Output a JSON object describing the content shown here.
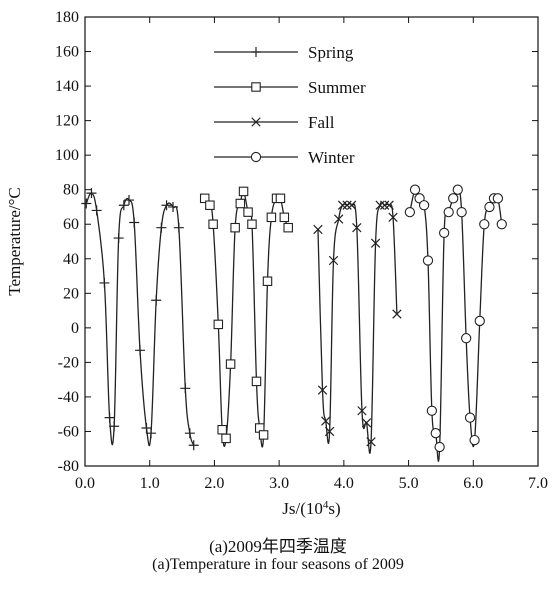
{
  "chart_data": {
    "type": "line",
    "xlabel": "Js/(10",
    "xlabel_sup": "4",
    "xlabel_suffix": "s)",
    "ylabel": "Temperature/°C",
    "xlim": [
      0,
      7.0
    ],
    "ylim": [
      -80,
      180
    ],
    "xticks": [
      "0.0",
      "1.0",
      "2.0",
      "3.0",
      "4.0",
      "5.0",
      "6.0",
      "7.0"
    ],
    "yticks": [
      "-80",
      "-60",
      "-40",
      "-20",
      "0",
      "20",
      "40",
      "60",
      "80",
      "100",
      "120",
      "140",
      "160",
      "180"
    ],
    "legend_position": "top-center",
    "grid": false,
    "series": [
      {
        "name": "Spring",
        "marker": "plus",
        "points": [
          [
            0.02,
            72
          ],
          [
            0.1,
            78
          ],
          [
            0.18,
            68
          ],
          [
            0.3,
            26
          ],
          [
            0.38,
            -52
          ],
          [
            0.45,
            -57
          ],
          [
            0.52,
            52
          ],
          [
            0.6,
            71
          ],
          [
            0.68,
            74
          ],
          [
            0.76,
            61
          ],
          [
            0.85,
            -13
          ],
          [
            0.95,
            -58
          ],
          [
            1.02,
            -61
          ],
          [
            1.1,
            16
          ],
          [
            1.18,
            58
          ],
          [
            1.26,
            71
          ],
          [
            1.36,
            70
          ],
          [
            1.45,
            58
          ],
          [
            1.55,
            -35
          ],
          [
            1.62,
            -61
          ],
          [
            1.68,
            -68
          ]
        ]
      },
      {
        "name": "Summer",
        "marker": "square",
        "points": [
          [
            1.85,
            75
          ],
          [
            1.93,
            71
          ],
          [
            1.98,
            60
          ],
          [
            2.06,
            2
          ],
          [
            2.12,
            -59
          ],
          [
            2.18,
            -64
          ],
          [
            2.25,
            -21
          ],
          [
            2.32,
            58
          ],
          [
            2.4,
            72
          ],
          [
            2.45,
            79
          ],
          [
            2.52,
            67
          ],
          [
            2.58,
            60
          ],
          [
            2.65,
            -31
          ],
          [
            2.7,
            -58
          ],
          [
            2.76,
            -62
          ],
          [
            2.82,
            27
          ],
          [
            2.88,
            64
          ],
          [
            2.96,
            75
          ],
          [
            3.02,
            75
          ],
          [
            3.08,
            64
          ],
          [
            3.14,
            58
          ]
        ]
      },
      {
        "name": "Fall",
        "marker": "x",
        "points": [
          [
            3.6,
            57
          ],
          [
            3.67,
            -36
          ],
          [
            3.72,
            -54
          ],
          [
            3.78,
            -60
          ],
          [
            3.84,
            39
          ],
          [
            3.92,
            63
          ],
          [
            3.98,
            71
          ],
          [
            4.05,
            71
          ],
          [
            4.12,
            71
          ],
          [
            4.2,
            58
          ],
          [
            4.28,
            -48
          ],
          [
            4.35,
            -55
          ],
          [
            4.42,
            -66
          ],
          [
            4.49,
            49
          ],
          [
            4.56,
            71
          ],
          [
            4.63,
            71
          ],
          [
            4.7,
            71
          ],
          [
            4.76,
            64
          ],
          [
            4.82,
            8
          ]
        ]
      },
      {
        "name": "Winter",
        "marker": "circle",
        "points": [
          [
            5.02,
            67
          ],
          [
            5.1,
            80
          ],
          [
            5.17,
            75
          ],
          [
            5.24,
            71
          ],
          [
            5.3,
            39
          ],
          [
            5.36,
            -48
          ],
          [
            5.42,
            -61
          ],
          [
            5.48,
            -69
          ],
          [
            5.55,
            55
          ],
          [
            5.62,
            67
          ],
          [
            5.69,
            75
          ],
          [
            5.76,
            80
          ],
          [
            5.82,
            67
          ],
          [
            5.89,
            -6
          ],
          [
            5.95,
            -52
          ],
          [
            6.02,
            -65
          ],
          [
            6.1,
            4
          ],
          [
            6.17,
            60
          ],
          [
            6.25,
            70
          ],
          [
            6.32,
            75
          ],
          [
            6.38,
            75
          ],
          [
            6.44,
            60
          ]
        ]
      }
    ]
  },
  "caption": {
    "line1": "(a)2009年四季温度",
    "line2": "(a)Temperature in four seasons of 2009"
  },
  "colors": {
    "line": "#222222",
    "axis": "#111111",
    "background": "#ffffff"
  }
}
